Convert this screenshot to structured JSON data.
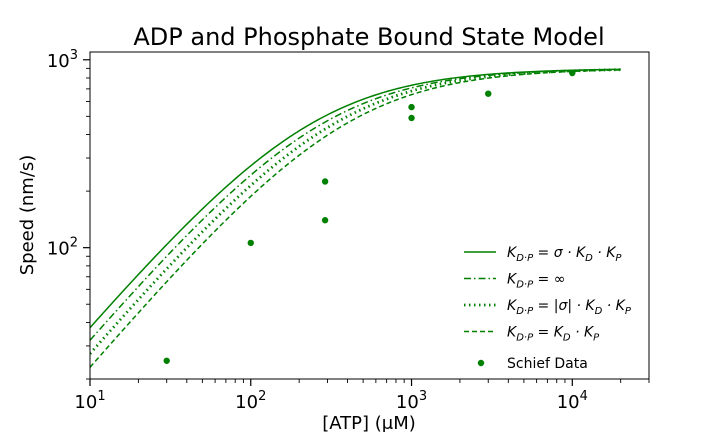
{
  "chart_data": {
    "type": "line",
    "title": "ADP and Phosphate Bound State Model",
    "xlabel": "[ATP] (μM)",
    "ylabel": "Speed (nm/s)",
    "xscale": "log",
    "yscale": "log",
    "xlim": [
      10,
      30000
    ],
    "ylim": [
      20,
      1100
    ],
    "x_ticks": [
      {
        "value": 10,
        "base": "10",
        "exp": "1"
      },
      {
        "value": 100,
        "base": "10",
        "exp": "2"
      },
      {
        "value": 1000,
        "base": "10",
        "exp": "3"
      },
      {
        "value": 10000,
        "base": "10",
        "exp": "4"
      }
    ],
    "y_ticks": [
      {
        "value": 100,
        "base": "10",
        "exp": "2"
      },
      {
        "value": 1000,
        "base": "10",
        "exp": "3"
      }
    ],
    "legend_position": "lower-right",
    "color": "#008000",
    "series": [
      {
        "name": "K_D·P = σ·K_D·K_P",
        "style": "solid",
        "vmax": 900,
        "km": 230,
        "x_range": [
          10,
          20000
        ]
      },
      {
        "name": "K_D·P = ∞",
        "style": "dashdot",
        "vmax": 900,
        "km": 270,
        "x_range": [
          10,
          20000
        ]
      },
      {
        "name": "K_D·P = |σ|·K_D·K_P",
        "style": "dotted",
        "vmax": 900,
        "km": 320,
        "x_range": [
          10,
          20000
        ]
      },
      {
        "name": "K_D·P = K_D·K_P",
        "style": "dashed",
        "vmax": 900,
        "km": 380,
        "x_range": [
          10,
          20000
        ]
      }
    ],
    "scatter": {
      "name": "Schief Data",
      "points": [
        {
          "x": 30,
          "y": 25
        },
        {
          "x": 100,
          "y": 106
        },
        {
          "x": 290,
          "y": 225
        },
        {
          "x": 290,
          "y": 140
        },
        {
          "x": 1000,
          "y": 560
        },
        {
          "x": 1000,
          "y": 490
        },
        {
          "x": 3000,
          "y": 660
        },
        {
          "x": 10000,
          "y": 850
        }
      ]
    },
    "legend": [
      {
        "type": "solid",
        "lhs": "K",
        "sub": "D·P",
        "rhs": " = σ · K",
        "sub2": "D",
        "rhs2": " · K",
        "sub3": "P"
      },
      {
        "type": "dashdot",
        "lhs": "K",
        "sub": "D·P",
        "rhs": " = ∞",
        "sub2": "",
        "rhs2": "",
        "sub3": ""
      },
      {
        "type": "dotted",
        "lhs": "K",
        "sub": "D·P",
        "rhs": " = |σ| · K",
        "sub2": "D",
        "rhs2": " · K",
        "sub3": "P"
      },
      {
        "type": "dashed",
        "lhs": "K",
        "sub": "D·P",
        "rhs": " = K",
        "sub2": "D",
        "rhs2": " · K",
        "sub3": "P"
      },
      {
        "type": "scatter",
        "label": "Schief Data"
      }
    ]
  }
}
